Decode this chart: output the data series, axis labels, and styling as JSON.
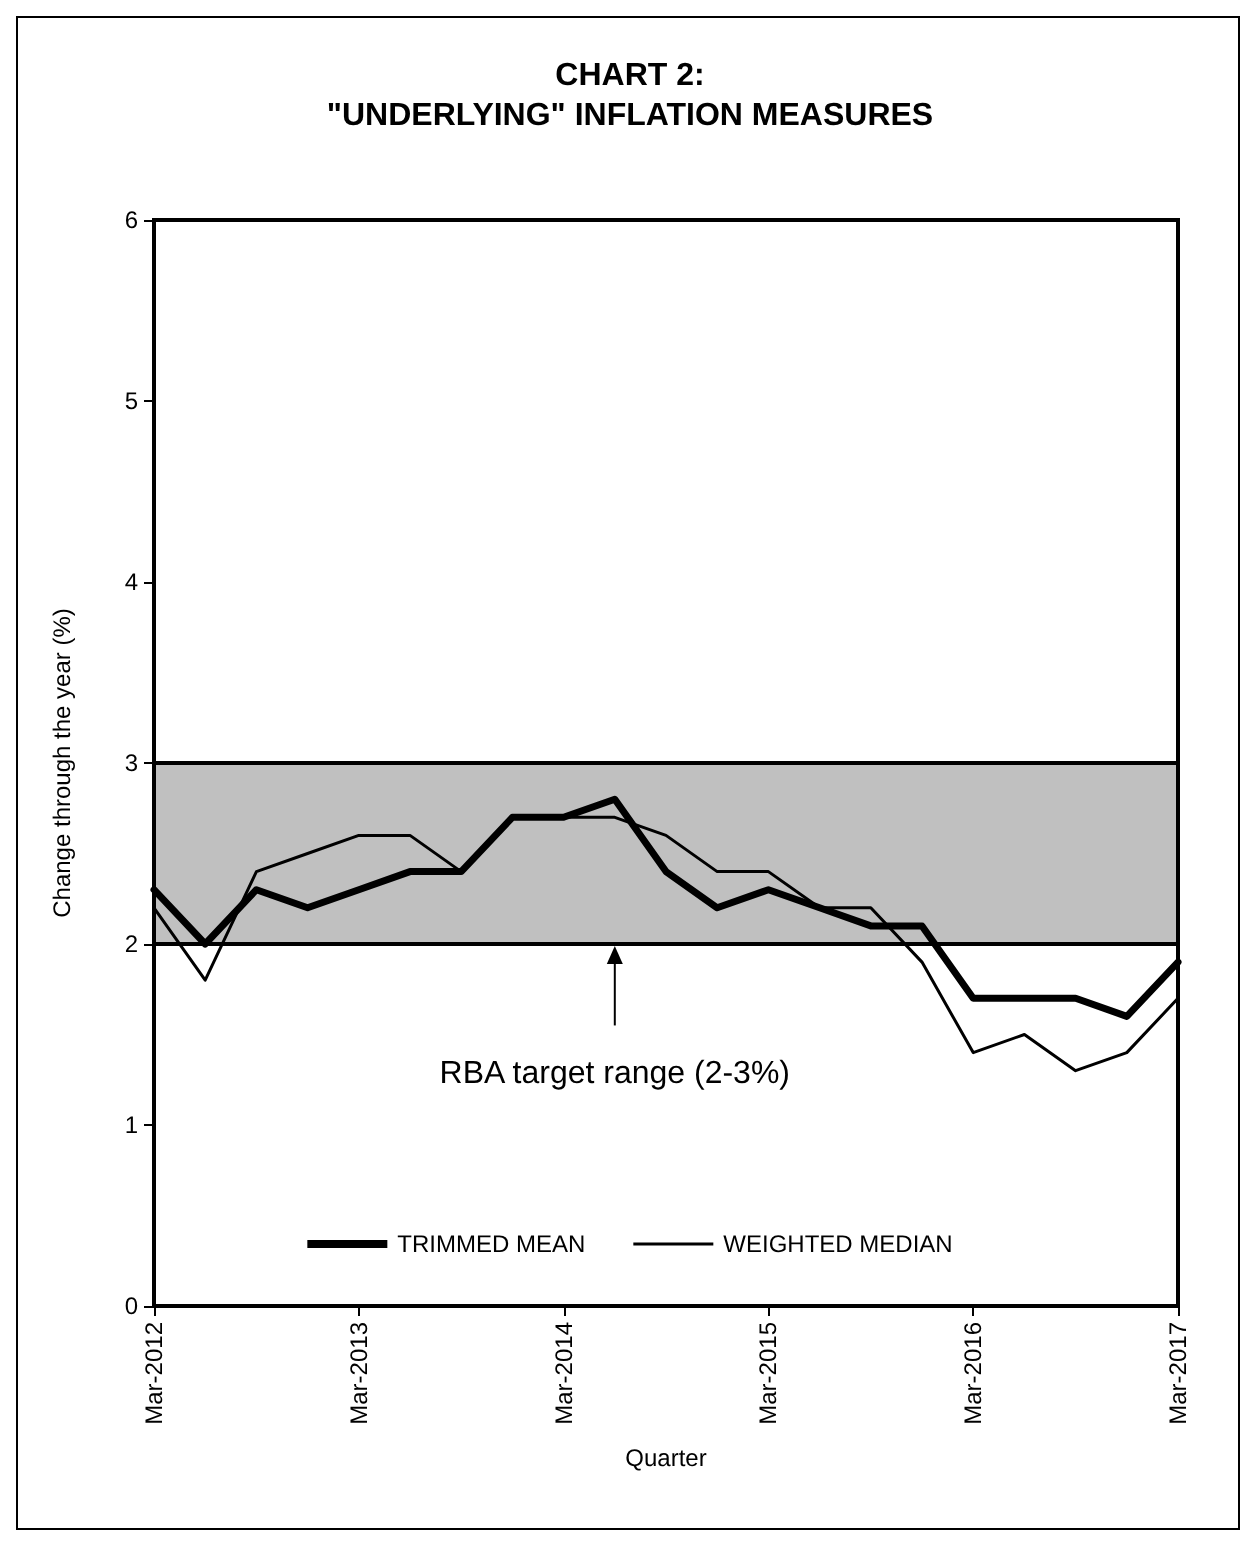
{
  "chart_data": {
    "type": "line",
    "title": "CHART 2:\n\"UNDERLYING\" INFLATION MEASURES",
    "xlabel": "Quarter",
    "ylabel": "Change through the year (%)",
    "categories": [
      "Mar-2012",
      null,
      null,
      null,
      "Mar-2013",
      null,
      null,
      null,
      "Mar-2014",
      null,
      null,
      null,
      "Mar-2015",
      null,
      null,
      null,
      "Mar-2016",
      null,
      null,
      null,
      "Mar-2017"
    ],
    "series": [
      {
        "name": "TRIMMED MEAN",
        "color": "#000000",
        "values": [
          2.3,
          2.0,
          2.3,
          2.2,
          2.3,
          2.4,
          2.4,
          2.7,
          2.7,
          2.8,
          2.4,
          2.2,
          2.3,
          2.2,
          2.1,
          2.1,
          1.7,
          1.7,
          1.7,
          1.6,
          1.9
        ]
      },
      {
        "name": "WEIGHTED MEDIAN",
        "color": "#000000",
        "values": [
          2.2,
          1.8,
          2.4,
          2.5,
          2.6,
          2.6,
          2.4,
          2.7,
          2.7,
          2.7,
          2.6,
          2.4,
          2.4,
          2.2,
          2.2,
          1.9,
          1.4,
          1.5,
          1.3,
          1.4,
          1.7
        ]
      }
    ],
    "ylim": [
      0,
      6
    ],
    "yticks": [
      0,
      1,
      2,
      3,
      4,
      5,
      6
    ],
    "grid": false,
    "legend": "bottom",
    "marker": "none",
    "line_style": "solid",
    "bands": [
      {
        "axis": "y",
        "from": 2,
        "to": 3,
        "label": "RBA target range (2-3%)",
        "color": "#c0c0c0"
      }
    ]
  }
}
